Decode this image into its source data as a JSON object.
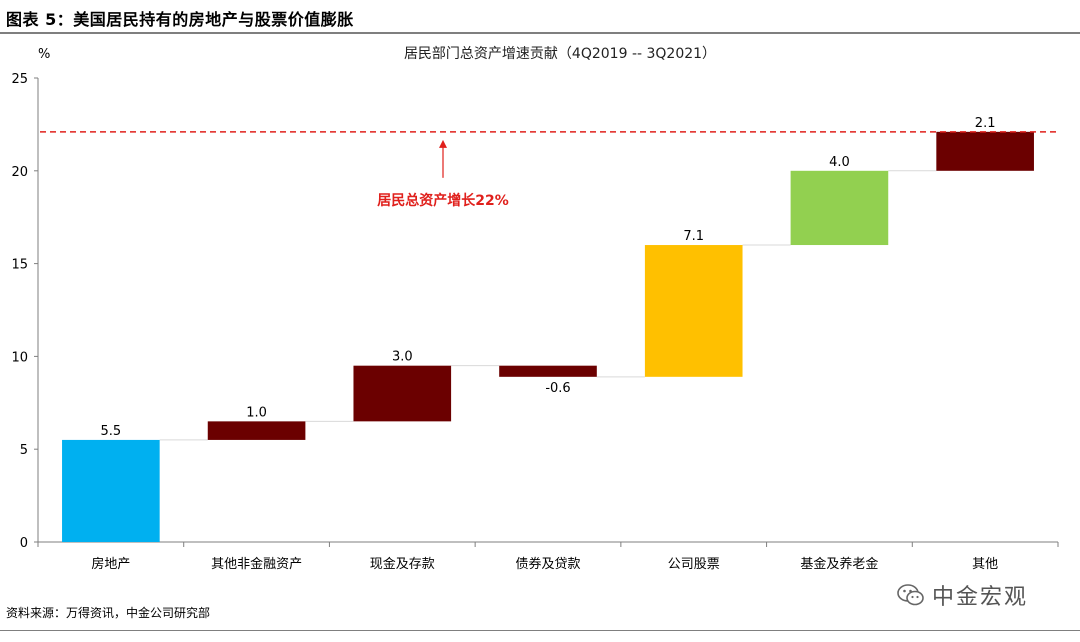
{
  "figure_title": "图表 5：美国居民持有的房地产与股票价值膨胀",
  "source_note": "资料来源：万得资讯，中金公司研究部",
  "watermark": {
    "text": "中金宏观",
    "icon": "wechat-icon",
    "color": "#555555"
  },
  "chart_data": {
    "type": "bar",
    "subtype": "waterfall",
    "title": "居民部门总资产增速贡献（4Q2019 -- 3Q2021）",
    "ylabel": "%",
    "xlabel": "",
    "ylim": [
      0,
      25
    ],
    "yticks": [
      0,
      5,
      10,
      15,
      20,
      25
    ],
    "grid": false,
    "legend": "none",
    "categories": [
      "房地产",
      "其他非金融资产",
      "现金及存款",
      "债券及贷款",
      "公司股票",
      "基金及养老金",
      "其他"
    ],
    "values": [
      5.5,
      1.0,
      3.0,
      -0.6,
      7.1,
      4.0,
      2.1
    ],
    "value_labels": [
      "5.5",
      "1.0",
      "3.0",
      "-0.6",
      "7.1",
      "4.0",
      "2.1"
    ],
    "colors": [
      "#00b0f0",
      "#6b0000",
      "#6b0000",
      "#6b0000",
      "#ffc000",
      "#92d050",
      "#6b0000"
    ],
    "connector_color": "#d9d9d9",
    "reference_line": {
      "value": 22.1,
      "style": "dashed",
      "color": "#e0201c"
    },
    "annotation": {
      "text": "居民总资产增长22%",
      "color": "#e0201c",
      "arrow": "up"
    }
  }
}
